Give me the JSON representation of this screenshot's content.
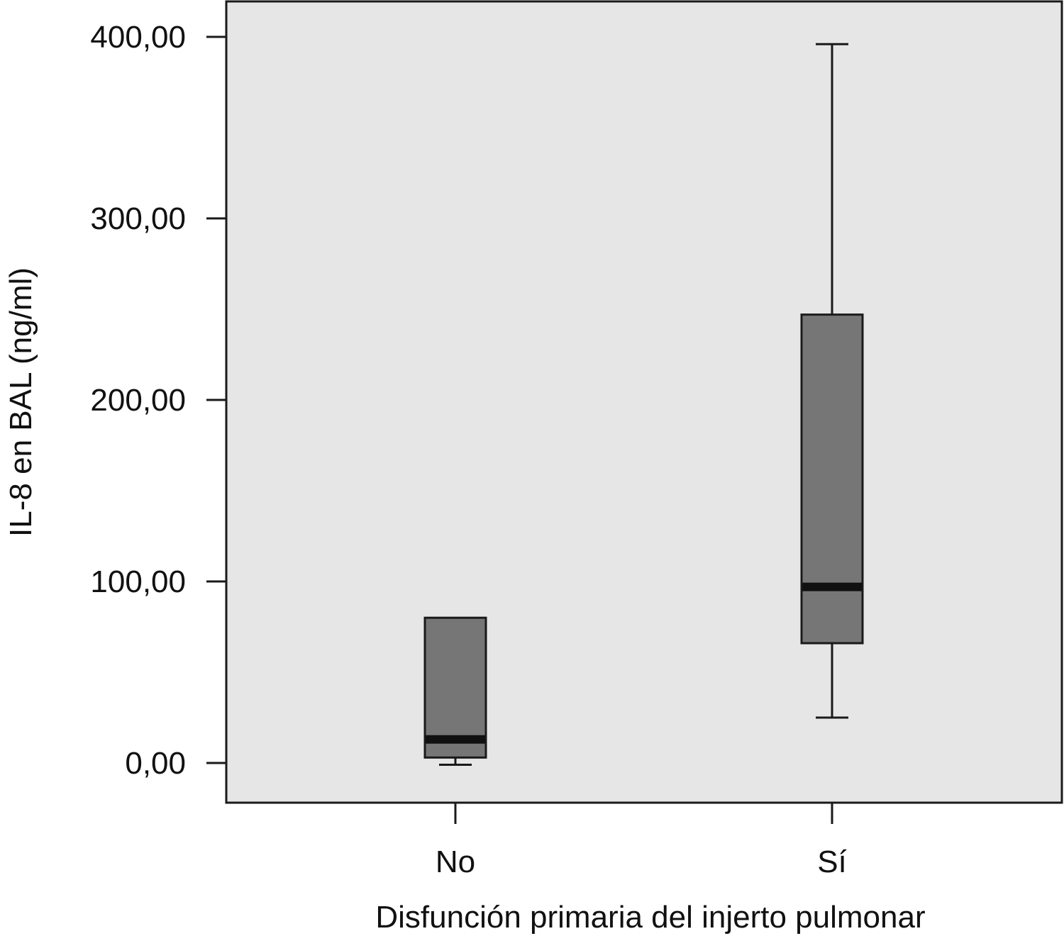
{
  "chart_data": {
    "type": "boxplot",
    "title": "",
    "xlabel": "Disfunción primaria del injerto pulmonar",
    "ylabel": "IL-8 en BAL (ng/ml)",
    "ylim": [
      -22,
      420
    ],
    "yticks": [
      0,
      100,
      200,
      300,
      400
    ],
    "ytick_labels": [
      "0,00",
      "100,00",
      "200,00",
      "300,00",
      "400,00"
    ],
    "categories": [
      "No",
      "Sí"
    ],
    "boxes": [
      {
        "category": "No",
        "whisker_low": -1,
        "q1": 3,
        "median": 13,
        "q3": 80,
        "whisker_high": 80
      },
      {
        "category": "Sí",
        "whisker_low": 25,
        "q1": 66,
        "median": 97,
        "q3": 247,
        "whisker_high": 396
      }
    ],
    "grid": false,
    "colors": {
      "plot_bg": "#e6e6e6",
      "box_fill": "#767676",
      "median": "#111111",
      "line": "#1a1a1a"
    }
  }
}
